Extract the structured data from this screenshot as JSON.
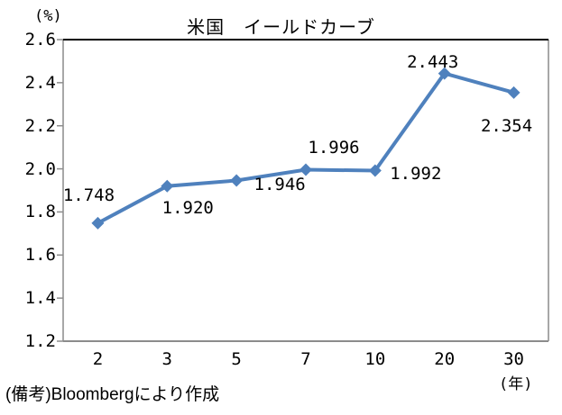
{
  "chart_data": {
    "type": "line",
    "title": "米国　イールドカーブ",
    "y_unit_label": "(%)",
    "x_unit_label": "(年)",
    "categories": [
      "2",
      "3",
      "5",
      "7",
      "10",
      "20",
      "30"
    ],
    "values": [
      1.748,
      1.92,
      1.946,
      1.996,
      1.992,
      2.443,
      2.354
    ],
    "point_labels": [
      "1.748",
      "1.920",
      "1.946",
      "1.996",
      "1.992",
      "2.443",
      "2.354"
    ],
    "ylim": [
      1.2,
      2.6
    ],
    "ytick_step": 0.2,
    "ytick_labels": [
      "2.6",
      "2.4",
      "2.2",
      "2.0",
      "1.8",
      "1.6",
      "1.4",
      "1.2"
    ],
    "grid": false,
    "legend": "none",
    "marker": "diamond",
    "line_color": "#4F81BD",
    "axis_color": "#8C8C8C",
    "top_border_color": "#000000",
    "label_color": "#000000"
  },
  "footer": {
    "note": "(備考)Bloombergにより作成"
  }
}
